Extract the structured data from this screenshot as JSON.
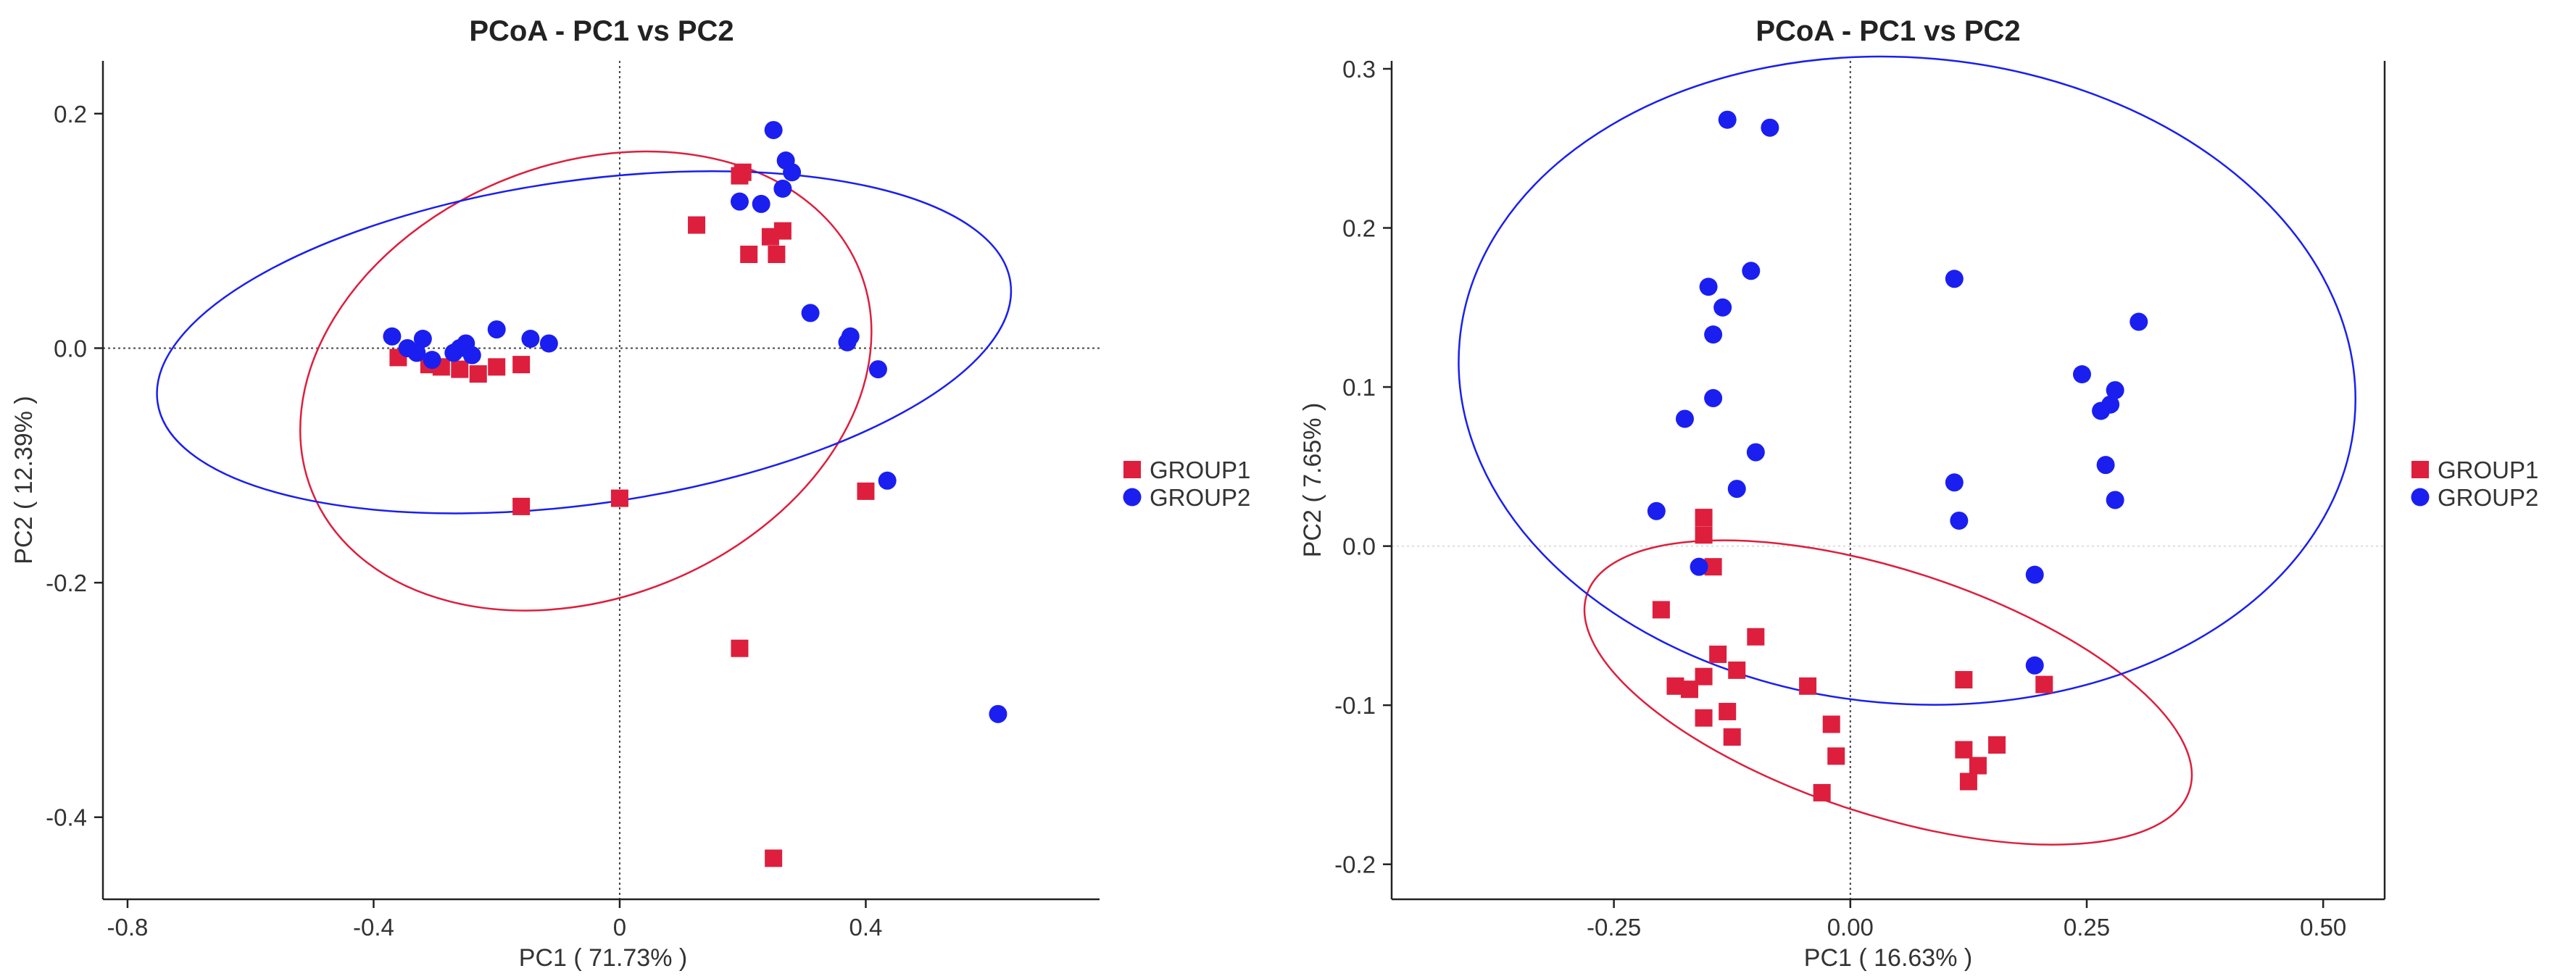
{
  "chart_data": [
    {
      "type": "scatter",
      "title": "PCoA - PC1 vs PC2",
      "xlabel": "PC1 ( 71.73% )",
      "ylabel": "PC2 ( 12.39% )",
      "xlim": [
        -0.84,
        0.78
      ],
      "ylim": [
        -0.47,
        0.245
      ],
      "xticks": [
        -0.8,
        -0.4,
        0,
        0.4
      ],
      "xtick_labels": [
        "-0.8",
        "-0.4",
        "0",
        "0.4"
      ],
      "yticks": [
        0.2,
        0,
        -0.2,
        -0.4
      ],
      "ytick_labels": [
        "0.2",
        "0.0",
        "-0.2",
        "-0.4"
      ],
      "legend_position": "right",
      "series": [
        {
          "name": "GROUP1",
          "color": "#dd1f3d",
          "marker": "square",
          "points": [
            [
              0.2,
              0.15
            ],
            [
              0.195,
              0.147
            ],
            [
              0.125,
              0.105
            ],
            [
              0.265,
              0.1
            ],
            [
              0.245,
              0.095
            ],
            [
              0.21,
              0.08
            ],
            [
              0.255,
              0.08
            ],
            [
              -0.36,
              -0.008
            ],
            [
              -0.31,
              -0.014
            ],
            [
              -0.29,
              -0.016
            ],
            [
              -0.26,
              -0.018
            ],
            [
              -0.23,
              -0.022
            ],
            [
              -0.2,
              -0.016
            ],
            [
              -0.16,
              -0.014
            ],
            [
              -0.16,
              -0.135
            ],
            [
              0.0,
              -0.128
            ],
            [
              0.4,
              -0.122
            ],
            [
              0.195,
              -0.256
            ],
            [
              0.25,
              -0.435
            ]
          ],
          "ellipse": {
            "cx": -0.055,
            "cy": -0.028,
            "rx": 0.48,
            "ry": 0.185,
            "angle_deg": 22
          }
        },
        {
          "name": "GROUP2",
          "color": "#1a1ff0",
          "marker": "circle",
          "points": [
            [
              0.25,
              0.186
            ],
            [
              0.27,
              0.16
            ],
            [
              0.28,
              0.15
            ],
            [
              0.265,
              0.136
            ],
            [
              0.195,
              0.125
            ],
            [
              0.23,
              0.123
            ],
            [
              0.31,
              0.03
            ],
            [
              0.375,
              0.01
            ],
            [
              0.37,
              0.005
            ],
            [
              0.42,
              -0.018
            ],
            [
              0.435,
              -0.113
            ],
            [
              0.615,
              -0.312
            ],
            [
              -0.37,
              0.01
            ],
            [
              -0.345,
              0.0
            ],
            [
              -0.32,
              0.008
            ],
            [
              -0.33,
              -0.004
            ],
            [
              -0.305,
              -0.01
            ],
            [
              -0.27,
              -0.004
            ],
            [
              -0.26,
              0.0
            ],
            [
              -0.25,
              0.004
            ],
            [
              -0.24,
              -0.006
            ],
            [
              -0.2,
              0.016
            ],
            [
              -0.145,
              0.008
            ],
            [
              -0.115,
              0.004
            ]
          ],
          "ellipse": {
            "cx": -0.058,
            "cy": 0.005,
            "rx": 0.7,
            "ry": 0.138,
            "angle_deg": 8
          }
        }
      ]
    },
    {
      "type": "scatter",
      "title": "PCoA - PC1 vs PC2",
      "xlabel": "PC1 ( 16.63% )",
      "ylabel": "PC2 ( 7.65% )",
      "xlim": [
        -0.485,
        0.565
      ],
      "ylim": [
        -0.222,
        0.305
      ],
      "xticks": [
        -0.25,
        0,
        0.25,
        0.5
      ],
      "xtick_labels": [
        "-0.25",
        "0.00",
        "0.25",
        "0.50"
      ],
      "yticks": [
        0.3,
        0.2,
        0.1,
        0.0,
        -0.1,
        -0.2
      ],
      "ytick_labels": [
        "0.3",
        "0.2",
        "0.1",
        "0.0",
        "-0.1",
        "-0.2"
      ],
      "legend_position": "right",
      "series": [
        {
          "name": "GROUP1",
          "color": "#dd1f3d",
          "marker": "square",
          "points": [
            [
              -0.155,
              0.018
            ],
            [
              -0.155,
              0.007
            ],
            [
              -0.145,
              -0.013
            ],
            [
              -0.2,
              -0.04
            ],
            [
              -0.1,
              -0.057
            ],
            [
              -0.14,
              -0.068
            ],
            [
              -0.12,
              -0.078
            ],
            [
              -0.155,
              -0.082
            ],
            [
              -0.185,
              -0.088
            ],
            [
              -0.17,
              -0.09
            ],
            [
              -0.045,
              -0.088
            ],
            [
              -0.13,
              -0.104
            ],
            [
              -0.155,
              -0.108
            ],
            [
              -0.125,
              -0.12
            ],
            [
              -0.02,
              -0.112
            ],
            [
              -0.015,
              -0.132
            ],
            [
              -0.03,
              -0.155
            ],
            [
              0.12,
              -0.084
            ],
            [
              0.205,
              -0.087
            ],
            [
              0.12,
              -0.128
            ],
            [
              0.135,
              -0.138
            ],
            [
              0.155,
              -0.125
            ],
            [
              0.125,
              -0.148
            ]
          ],
          "ellipse": {
            "cx": 0.04,
            "cy": -0.092,
            "rx": 0.335,
            "ry": 0.077,
            "angle_deg": -18
          }
        },
        {
          "name": "GROUP2",
          "color": "#1a1ff0",
          "marker": "circle",
          "points": [
            [
              -0.13,
              0.268
            ],
            [
              -0.085,
              0.263
            ],
            [
              -0.105,
              0.173
            ],
            [
              -0.15,
              0.163
            ],
            [
              -0.135,
              0.15
            ],
            [
              -0.145,
              0.133
            ],
            [
              -0.145,
              0.093
            ],
            [
              -0.175,
              0.08
            ],
            [
              -0.1,
              0.059
            ],
            [
              -0.12,
              0.036
            ],
            [
              -0.205,
              0.022
            ],
            [
              -0.16,
              -0.013
            ],
            [
              0.11,
              0.168
            ],
            [
              0.11,
              0.04
            ],
            [
              0.115,
              0.016
            ],
            [
              0.305,
              0.141
            ],
            [
              0.245,
              0.108
            ],
            [
              0.28,
              0.098
            ],
            [
              0.275,
              0.089
            ],
            [
              0.265,
              0.085
            ],
            [
              0.27,
              0.051
            ],
            [
              0.28,
              0.029
            ],
            [
              0.195,
              -0.018
            ],
            [
              0.195,
              -0.075
            ]
          ],
          "ellipse": {
            "cx": 0.06,
            "cy": 0.104,
            "rx": 0.475,
            "ry": 0.203,
            "angle_deg": -5
          }
        }
      ]
    }
  ]
}
